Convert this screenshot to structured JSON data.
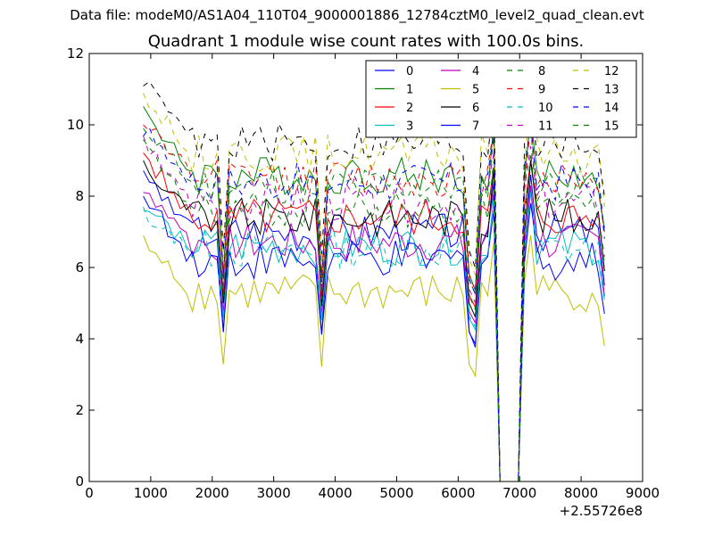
{
  "figure": {
    "suptitle": "Data file: modeM0/AS1A04_110T04_9000001886_12784cztM0_level2_quad_clean.evt"
  },
  "chart_data": {
    "type": "line",
    "title": "Quadrant 1 module wise count rates with 100.0s bins.",
    "xlabel": "",
    "ylabel": "",
    "x_offset_label": "+2.55726e8",
    "xlim": [
      0,
      9000
    ],
    "ylim": [
      0,
      12
    ],
    "xticks": [
      0,
      1000,
      2000,
      3000,
      4000,
      5000,
      6000,
      7000,
      8000,
      9000
    ],
    "yticks": [
      0,
      2,
      4,
      6,
      8,
      10,
      12
    ],
    "grid": false,
    "legend_placement": "upper-right",
    "legend_columns": 4,
    "x": [
      880,
      980,
      1080,
      1180,
      1280,
      1380,
      1480,
      1580,
      1680,
      1780,
      1880,
      1980,
      2080,
      2180,
      2280,
      2380,
      2480,
      2580,
      2680,
      2780,
      2880,
      2980,
      3080,
      3180,
      3280,
      3380,
      3480,
      3580,
      3680,
      3780,
      3880,
      3980,
      4080,
      4180,
      4280,
      4380,
      4480,
      4580,
      4680,
      4780,
      4880,
      4980,
      5080,
      5180,
      5280,
      5380,
      5480,
      5580,
      5680,
      5780,
      5880,
      5980,
      6080,
      6180,
      6280,
      6380,
      6480,
      6580,
      6680,
      6780,
      6880,
      6980,
      7080,
      7180,
      7280,
      7380,
      7480,
      7580,
      7680,
      7780,
      7880,
      7980,
      8080,
      8180,
      8280,
      8380
    ],
    "series": [
      {
        "name": "0",
        "color": "#0000ff",
        "dash": "solid",
        "base": 7.0,
        "start": 8.5,
        "dip": 3.4,
        "offset": 0
      },
      {
        "name": "1",
        "color": "#008000",
        "dash": "solid",
        "base": 8.6,
        "start": 10.4,
        "dip": 5.0,
        "offset": 1
      },
      {
        "name": "2",
        "color": "#ff0000",
        "dash": "solid",
        "base": 7.4,
        "start": 9.2,
        "dip": 4.6,
        "offset": 2
      },
      {
        "name": "3",
        "color": "#00bfbf",
        "dash": "solid",
        "base": 6.6,
        "start": 7.7,
        "dip": 4.0,
        "offset": 3
      },
      {
        "name": "4",
        "color": "#bf00bf",
        "dash": "solid",
        "base": 6.7,
        "start": 8.3,
        "dip": 4.2,
        "offset": 4
      },
      {
        "name": "5",
        "color": "#bfbf00",
        "dash": "solid",
        "base": 5.3,
        "start": 6.7,
        "dip": 2.7,
        "offset": 5
      },
      {
        "name": "6",
        "color": "#000000",
        "dash": "solid",
        "base": 7.4,
        "start": 8.9,
        "dip": 4.3,
        "offset": 6
      },
      {
        "name": "7",
        "color": "#0000ff",
        "dash": "solid",
        "base": 6.2,
        "start": 8.0,
        "dip": 3.6,
        "offset": 7
      },
      {
        "name": "8",
        "color": "#008000",
        "dash": "dashed",
        "base": 8.3,
        "start": 10.0,
        "dip": 4.9,
        "offset": 8
      },
      {
        "name": "9",
        "color": "#ff0000",
        "dash": "dashed",
        "base": 8.5,
        "start": 10.2,
        "dip": 5.0,
        "offset": 9
      },
      {
        "name": "10",
        "color": "#00bfbf",
        "dash": "dashed",
        "base": 6.5,
        "start": 7.5,
        "dip": 4.1,
        "offset": 10
      },
      {
        "name": "11",
        "color": "#bf00bf",
        "dash": "dashed",
        "base": 7.8,
        "start": 9.6,
        "dip": 4.7,
        "offset": 11
      },
      {
        "name": "12",
        "color": "#bfbf00",
        "dash": "dashed",
        "base": 9.2,
        "start": 10.9,
        "dip": 5.4,
        "offset": 12
      },
      {
        "name": "13",
        "color": "#000000",
        "dash": "dashed",
        "base": 9.5,
        "start": 11.2,
        "dip": 5.6,
        "offset": 13
      },
      {
        "name": "14",
        "color": "#0000ff",
        "dash": "dashed",
        "base": 8.4,
        "start": 9.9,
        "dip": 4.9,
        "offset": 14
      },
      {
        "name": "15",
        "color": "#008000",
        "dash": "dashed",
        "base": 7.6,
        "start": 9.4,
        "dip": 4.5,
        "offset": 15
      }
    ]
  }
}
